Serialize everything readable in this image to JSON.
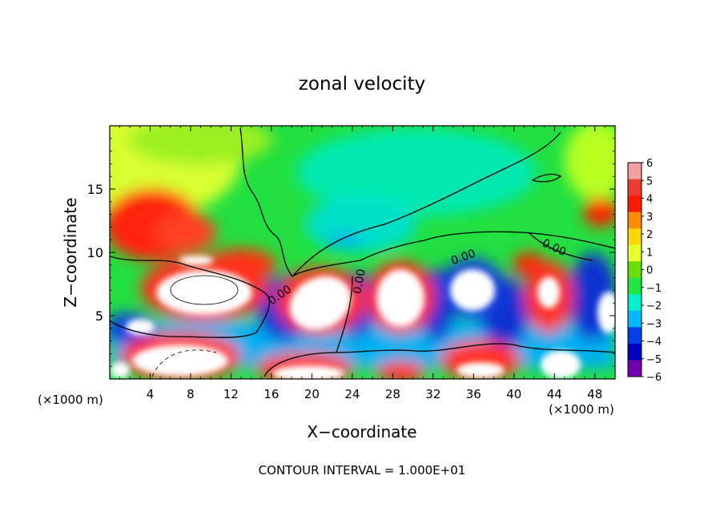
{
  "chart_data": {
    "type": "heatmap",
    "title": "zonal velocity",
    "xlabel": "X−coordinate",
    "ylabel": "Z−coordinate",
    "x_unit_left": "(×1000 m)",
    "x_unit_right": "(×1000 m)",
    "footer": "CONTOUR INTERVAL = 1.000E+01",
    "xlim": [
      0,
      50
    ],
    "ylim": [
      0,
      20
    ],
    "x_ticks": [
      4,
      8,
      12,
      16,
      20,
      24,
      28,
      32,
      36,
      40,
      44,
      48
    ],
    "x_tick_labels": [
      "4",
      "8",
      "12",
      "16",
      "20",
      "24",
      "28",
      "32",
      "36",
      "40",
      "44",
      "48"
    ],
    "y_ticks": [
      5,
      10,
      15
    ],
    "y_tick_labels": [
      "5",
      "10",
      "15"
    ],
    "contour_labels": [
      "0.00",
      "0.00",
      "0.00",
      "0.00"
    ],
    "colorbar": {
      "min": -6,
      "max": 6,
      "ticks": [
        6,
        5,
        4,
        3,
        2,
        1,
        0,
        -1,
        -2,
        -3,
        -4,
        -5,
        -6
      ],
      "tick_labels": [
        "6",
        "5",
        "4",
        "3",
        "2",
        "1",
        "0",
        "−1",
        "−2",
        "−3",
        "−4",
        "−5",
        "−6"
      ],
      "colors": [
        "#f2a0a0",
        "#ee3c32",
        "#ff1a00",
        "#ff8c00",
        "#ffd700",
        "#e8ff30",
        "#66e000",
        "#1fe640",
        "#00f0d0",
        "#00b8ff",
        "#0040e6",
        "#0000c0",
        "#7000b0"
      ]
    }
  }
}
